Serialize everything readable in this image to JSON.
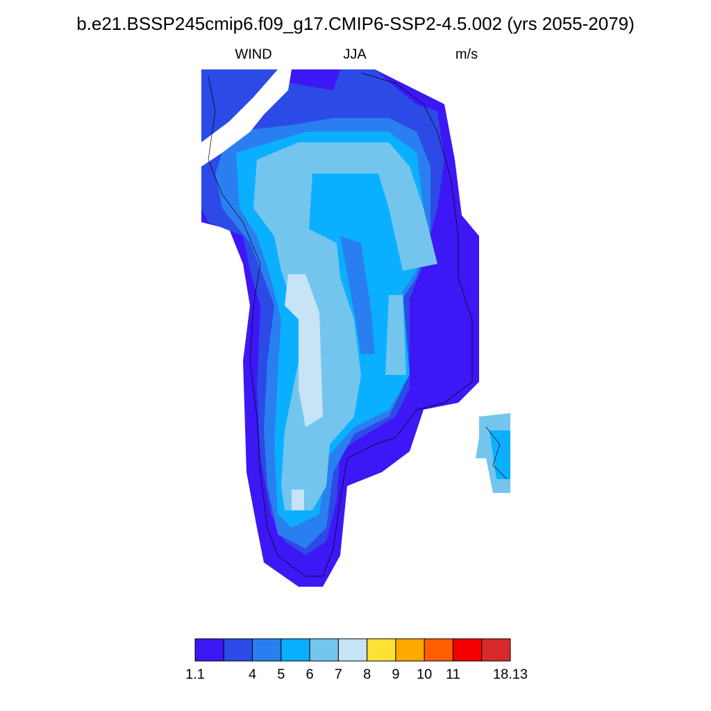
{
  "header": {
    "title": "b.e21.BSSP245cmip6.f09_g17.CMIP6-SSP2-4.5.002 (yrs 2055-2079)",
    "left": "WIND",
    "center": "JJA",
    "right": "m/s"
  },
  "colorbar": {
    "colors": [
      "#3d17f5",
      "#2b4ae6",
      "#2a7ff0",
      "#0ab0ff",
      "#74c5ee",
      "#c6e4f6",
      "#fde236",
      "#ffa800",
      "#ff5f00",
      "#f50000",
      "#d72a2a"
    ],
    "labels": [
      1.1,
      null,
      4,
      5,
      6,
      7,
      8,
      9,
      10,
      11,
      null,
      18.13
    ]
  }
}
